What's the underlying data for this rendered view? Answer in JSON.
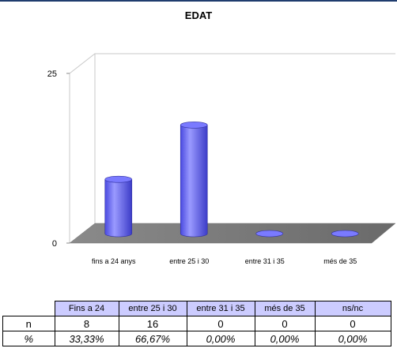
{
  "chart_data": {
    "type": "bar",
    "title": "EDAT",
    "categories": [
      "fins a 24 anys",
      "entre 25 i 30",
      "entre 31 i 35",
      "més de 35"
    ],
    "values": [
      8,
      16,
      0,
      0
    ],
    "yticks": [
      0,
      25
    ],
    "ylim": [
      0,
      25
    ],
    "bar_color": "#6666ff",
    "style": "3d-cylinder",
    "grid": false,
    "legend": "none"
  },
  "table": {
    "headers": [
      "",
      "Fins a 24",
      "entre 25 i 30",
      "entre 31 i 35",
      "més de 35",
      "ns/nc"
    ],
    "rows": [
      {
        "label": "n",
        "cells": [
          "8",
          "16",
          "0",
          "0",
          "0"
        ]
      },
      {
        "label": "%",
        "cells": [
          "33,33%",
          "66,67%",
          "0,00%",
          "0,00%",
          "0,00%"
        ]
      }
    ]
  }
}
